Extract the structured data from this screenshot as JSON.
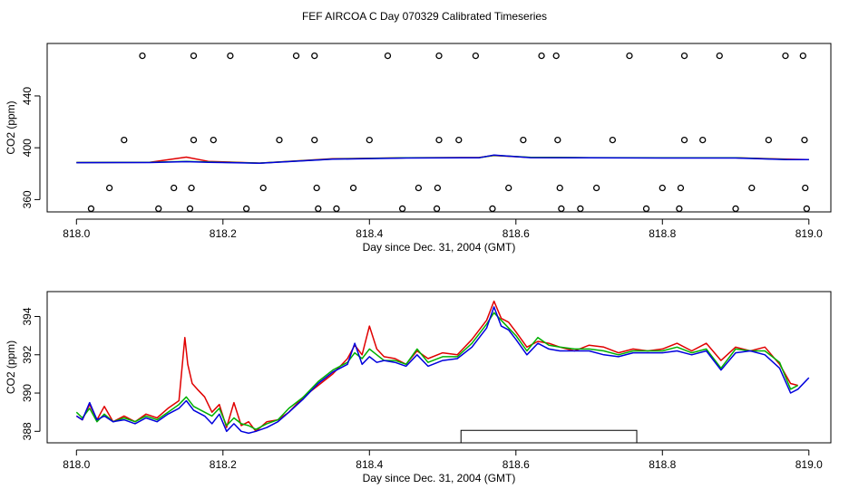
{
  "title": "FEF AIRCOA C  Day 070329  Calibrated Timeseries",
  "colors": {
    "red": "#e00000",
    "green": "#00b000",
    "blue": "#0000dd",
    "axis": "#000000",
    "frame": "#000000"
  },
  "chart_data": [
    {
      "type": "scatter+line",
      "name": "top-panel",
      "xlabel": "Day since Dec. 31, 2004 (GMT)",
      "ylabel": "CO2 (ppm)",
      "xlim": [
        817.96,
        819.03
      ],
      "ylim": [
        350.5,
        480.5
      ],
      "xticks": [
        818.0,
        818.2,
        818.4,
        818.6,
        818.8,
        819.0
      ],
      "xtick_labels": [
        "818.0",
        "818.2",
        "818.4",
        "818.6",
        "818.8",
        "819.0"
      ],
      "yticks": [
        360,
        400,
        440
      ],
      "ytick_labels": [
        "360",
        "400",
        "440"
      ],
      "points": [
        [
          818.09,
          471
        ],
        [
          818.16,
          471
        ],
        [
          818.21,
          471
        ],
        [
          818.3,
          471
        ],
        [
          818.325,
          471
        ],
        [
          818.425,
          471
        ],
        [
          818.495,
          471
        ],
        [
          818.545,
          471
        ],
        [
          818.635,
          471
        ],
        [
          818.655,
          471
        ],
        [
          818.755,
          471
        ],
        [
          818.83,
          471
        ],
        [
          818.878,
          471
        ],
        [
          818.968,
          471
        ],
        [
          818.992,
          471
        ],
        [
          818.065,
          406
        ],
        [
          818.16,
          406
        ],
        [
          818.187,
          406
        ],
        [
          818.277,
          406
        ],
        [
          818.325,
          406
        ],
        [
          818.4,
          406
        ],
        [
          818.495,
          406
        ],
        [
          818.522,
          406
        ],
        [
          818.61,
          406
        ],
        [
          818.657,
          406
        ],
        [
          818.732,
          406
        ],
        [
          818.83,
          406
        ],
        [
          818.855,
          406
        ],
        [
          818.945,
          406
        ],
        [
          818.994,
          406
        ],
        [
          818.045,
          369
        ],
        [
          818.133,
          369
        ],
        [
          818.157,
          369
        ],
        [
          818.255,
          369
        ],
        [
          818.328,
          369
        ],
        [
          818.378,
          369
        ],
        [
          818.467,
          369
        ],
        [
          818.493,
          369
        ],
        [
          818.59,
          369
        ],
        [
          818.66,
          369
        ],
        [
          818.71,
          369
        ],
        [
          818.8,
          369
        ],
        [
          818.825,
          369
        ],
        [
          818.922,
          369
        ],
        [
          818.995,
          369
        ],
        [
          818.02,
          353
        ],
        [
          818.112,
          353
        ],
        [
          818.155,
          353
        ],
        [
          818.232,
          353
        ],
        [
          818.33,
          353
        ],
        [
          818.355,
          353
        ],
        [
          818.445,
          353
        ],
        [
          818.492,
          353
        ],
        [
          818.568,
          353
        ],
        [
          818.662,
          353
        ],
        [
          818.688,
          353
        ],
        [
          818.778,
          353
        ],
        [
          818.823,
          353
        ],
        [
          818.9,
          353
        ],
        [
          818.997,
          353
        ]
      ],
      "series": [
        {
          "name": "red",
          "color": "#e00000",
          "x": [
            818.0,
            818.1,
            818.15,
            818.18,
            818.25,
            818.35,
            818.45,
            818.55,
            818.57,
            818.62,
            818.7,
            818.8,
            818.9,
            818.97,
            819.0
          ],
          "y": [
            388.6,
            388.8,
            392.8,
            389.5,
            388.2,
            391.5,
            392.3,
            392.5,
            394.0,
            392.5,
            392.3,
            392.3,
            392.3,
            391.2,
            390.8
          ]
        },
        {
          "name": "green",
          "color": "#00b000",
          "x": [
            818.0,
            818.1,
            818.15,
            818.18,
            818.25,
            818.35,
            818.45,
            818.55,
            818.57,
            818.62,
            818.7,
            818.8,
            818.9,
            818.97,
            819.0
          ],
          "y": [
            388.6,
            388.7,
            389.5,
            389.0,
            388.2,
            391.3,
            392.2,
            392.4,
            394.2,
            392.6,
            392.4,
            392.2,
            392.2,
            391.0,
            390.8
          ]
        },
        {
          "name": "blue",
          "color": "#0000dd",
          "x": [
            818.0,
            818.1,
            818.15,
            818.18,
            818.25,
            818.35,
            818.45,
            818.55,
            818.57,
            818.62,
            818.7,
            818.8,
            818.9,
            818.97,
            819.0
          ],
          "y": [
            388.5,
            388.6,
            389.3,
            388.8,
            388.1,
            391.2,
            392.1,
            392.3,
            394.4,
            392.4,
            392.2,
            392.1,
            392.1,
            390.8,
            390.8
          ]
        }
      ]
    },
    {
      "type": "line",
      "name": "bottom-panel",
      "xlabel": "Day since Dec. 31, 2004 (GMT)",
      "ylabel": "CO2 (ppm)",
      "xlim": [
        817.96,
        819.03
      ],
      "ylim": [
        387.4,
        395.3
      ],
      "xticks": [
        818.0,
        818.2,
        818.4,
        818.6,
        818.8,
        819.0
      ],
      "xtick_labels": [
        "818.0",
        "818.2",
        "818.4",
        "818.6",
        "818.8",
        "819.0"
      ],
      "yticks": [
        388,
        390,
        392,
        394
      ],
      "ytick_labels": [
        "388",
        "390",
        "392",
        "394"
      ],
      "bracket": {
        "x0": 818.525,
        "x1": 818.765,
        "y_top": 388.05
      },
      "series": [
        {
          "name": "red",
          "color": "#e00000",
          "x": [
            818.0,
            818.008,
            818.018,
            818.028,
            818.038,
            818.05,
            818.065,
            818.08,
            818.095,
            818.11,
            818.125,
            818.14,
            818.148,
            818.152,
            818.158,
            818.165,
            818.175,
            818.185,
            818.195,
            818.205,
            818.215,
            818.225,
            818.235,
            818.245,
            818.26,
            818.275,
            818.29,
            818.31,
            818.33,
            818.35,
            818.37,
            818.38,
            818.39,
            818.4,
            818.41,
            818.42,
            818.435,
            818.45,
            818.465,
            818.48,
            818.5,
            818.52,
            818.54,
            818.56,
            818.57,
            818.58,
            818.59,
            818.6,
            818.615,
            818.63,
            818.645,
            818.66,
            818.68,
            818.7,
            818.72,
            818.74,
            818.76,
            818.78,
            818.8,
            818.82,
            818.84,
            818.86,
            818.88,
            818.9,
            818.92,
            818.94,
            818.96,
            818.975,
            818.985
          ],
          "y": [
            388.8,
            388.6,
            389.4,
            388.6,
            389.3,
            388.5,
            388.8,
            388.5,
            388.9,
            388.7,
            389.2,
            389.6,
            392.9,
            391.5,
            390.5,
            390.2,
            389.8,
            389.0,
            389.4,
            388.2,
            389.5,
            388.3,
            388.5,
            388.0,
            388.5,
            388.6,
            389.0,
            389.8,
            390.4,
            391.0,
            391.8,
            392.5,
            392.0,
            393.5,
            392.3,
            391.9,
            391.8,
            391.5,
            392.2,
            391.8,
            392.1,
            392.0,
            392.8,
            393.8,
            394.8,
            393.9,
            393.7,
            393.2,
            392.4,
            392.7,
            392.6,
            392.4,
            392.2,
            392.5,
            392.4,
            392.1,
            392.3,
            392.2,
            392.3,
            392.6,
            392.2,
            392.6,
            391.7,
            392.4,
            392.2,
            392.4,
            391.5,
            390.5,
            390.4
          ]
        },
        {
          "name": "green",
          "color": "#00b000",
          "x": [
            818.0,
            818.008,
            818.018,
            818.028,
            818.038,
            818.05,
            818.065,
            818.08,
            818.095,
            818.11,
            818.125,
            818.14,
            818.15,
            818.16,
            818.175,
            818.185,
            818.195,
            818.205,
            818.215,
            818.225,
            818.235,
            818.245,
            818.26,
            818.275,
            818.29,
            818.31,
            818.33,
            818.35,
            818.37,
            818.38,
            818.39,
            818.4,
            818.41,
            818.42,
            818.435,
            818.45,
            818.465,
            818.48,
            818.5,
            818.52,
            818.54,
            818.56,
            818.57,
            818.58,
            818.59,
            818.6,
            818.615,
            818.63,
            818.645,
            818.66,
            818.68,
            818.7,
            818.72,
            818.74,
            818.76,
            818.78,
            818.8,
            818.82,
            818.84,
            818.86,
            818.88,
            818.9,
            818.92,
            818.94,
            818.96,
            818.975,
            818.985
          ],
          "y": [
            389.0,
            388.7,
            389.2,
            388.5,
            388.9,
            388.5,
            388.7,
            388.5,
            388.8,
            388.6,
            389.0,
            389.4,
            389.8,
            389.3,
            389.0,
            388.8,
            389.2,
            388.3,
            388.7,
            388.4,
            388.3,
            388.1,
            388.4,
            388.6,
            389.2,
            389.8,
            390.6,
            391.2,
            391.6,
            392.1,
            391.8,
            392.3,
            392.0,
            391.7,
            391.7,
            391.5,
            392.3,
            391.6,
            391.9,
            391.9,
            392.6,
            393.6,
            394.2,
            393.8,
            393.4,
            393.0,
            392.2,
            392.9,
            392.5,
            392.4,
            392.3,
            392.3,
            392.2,
            392.0,
            392.2,
            392.2,
            392.2,
            392.4,
            392.1,
            392.3,
            391.3,
            392.3,
            392.2,
            392.2,
            391.6,
            390.2,
            390.4
          ]
        },
        {
          "name": "blue",
          "color": "#0000dd",
          "x": [
            818.0,
            818.008,
            818.018,
            818.028,
            818.038,
            818.05,
            818.065,
            818.08,
            818.095,
            818.11,
            818.125,
            818.14,
            818.15,
            818.16,
            818.175,
            818.185,
            818.195,
            818.205,
            818.215,
            818.225,
            818.235,
            818.245,
            818.26,
            818.275,
            818.29,
            818.31,
            818.33,
            818.35,
            818.37,
            818.38,
            818.39,
            818.4,
            818.41,
            818.42,
            818.435,
            818.45,
            818.465,
            818.48,
            818.5,
            818.52,
            818.54,
            818.56,
            818.57,
            818.58,
            818.59,
            818.6,
            818.615,
            818.63,
            818.645,
            818.66,
            818.68,
            818.7,
            818.72,
            818.74,
            818.76,
            818.78,
            818.8,
            818.82,
            818.84,
            818.86,
            818.88,
            818.9,
            818.92,
            818.94,
            818.96,
            818.975,
            818.985,
            819.0
          ],
          "y": [
            388.8,
            388.6,
            389.5,
            388.6,
            388.8,
            388.5,
            388.6,
            388.4,
            388.7,
            388.5,
            388.9,
            389.2,
            389.6,
            389.1,
            388.8,
            388.4,
            388.9,
            388.0,
            388.4,
            388.0,
            387.9,
            388.0,
            388.2,
            388.5,
            389.0,
            389.7,
            390.5,
            391.1,
            391.5,
            392.6,
            391.5,
            391.9,
            391.6,
            391.7,
            391.6,
            391.4,
            392.0,
            391.4,
            391.7,
            391.8,
            392.4,
            393.4,
            394.5,
            393.5,
            393.3,
            392.8,
            392.0,
            392.6,
            392.3,
            392.2,
            392.2,
            392.2,
            392.0,
            391.9,
            392.1,
            392.1,
            392.1,
            392.2,
            392.0,
            392.2,
            391.2,
            392.1,
            392.2,
            392.0,
            391.3,
            390.0,
            390.2,
            390.8
          ]
        }
      ]
    }
  ]
}
